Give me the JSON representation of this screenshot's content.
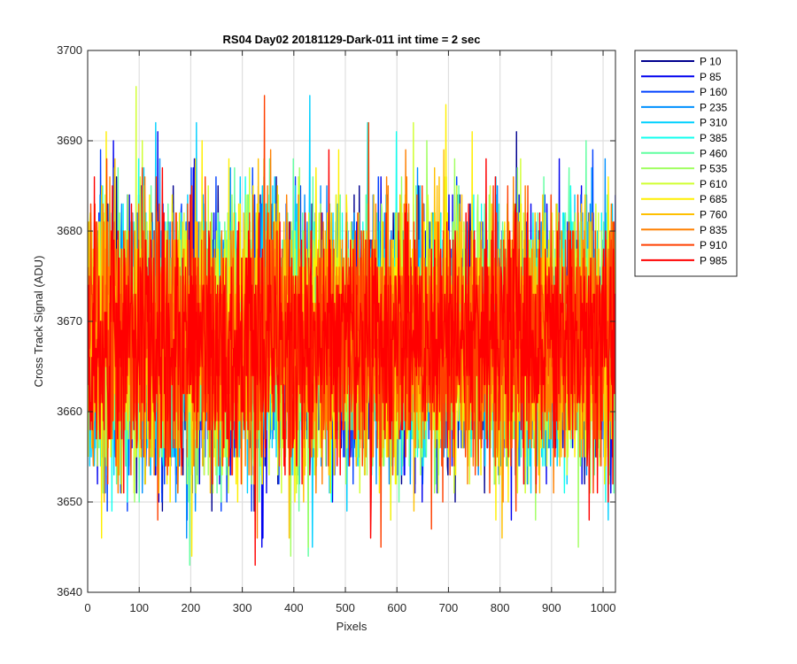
{
  "chart_data": {
    "type": "line",
    "title": "RS04 Day02 20181129-Dark-011 int time = 2 sec",
    "xlabel": "Pixels",
    "ylabel": "Cross Track Signal (ADU)",
    "xlim": [
      0,
      1024
    ],
    "ylim": [
      3640,
      3700
    ],
    "xticks": [
      0,
      100,
      200,
      300,
      400,
      500,
      600,
      700,
      800,
      900,
      1000
    ],
    "yticks": [
      3640,
      3650,
      3660,
      3670,
      3680,
      3690,
      3700
    ],
    "grid": true,
    "legend_position": "outside-top-right",
    "n_pixels": 1024,
    "signal_mean": 3668,
    "signal_std": 7,
    "signal_min": 3641,
    "signal_max": 3696,
    "series": [
      {
        "name": "P 10",
        "color": "#00008f"
      },
      {
        "name": "P 85",
        "color": "#0000ef"
      },
      {
        "name": "P 160",
        "color": "#0040ff"
      },
      {
        "name": "P 235",
        "color": "#0090ff"
      },
      {
        "name": "P 310",
        "color": "#00d0ff"
      },
      {
        "name": "P 385",
        "color": "#10ffef"
      },
      {
        "name": "P 460",
        "color": "#60ffa0"
      },
      {
        "name": "P 535",
        "color": "#a0ff60"
      },
      {
        "name": "P 610",
        "color": "#d0ff30"
      },
      {
        "name": "P 685",
        "color": "#ffef00"
      },
      {
        "name": "P 760",
        "color": "#ffc000"
      },
      {
        "name": "P 835",
        "color": "#ff8000"
      },
      {
        "name": "P 910",
        "color": "#ff4000"
      },
      {
        "name": "P 985",
        "color": "#ff0000"
      }
    ]
  }
}
